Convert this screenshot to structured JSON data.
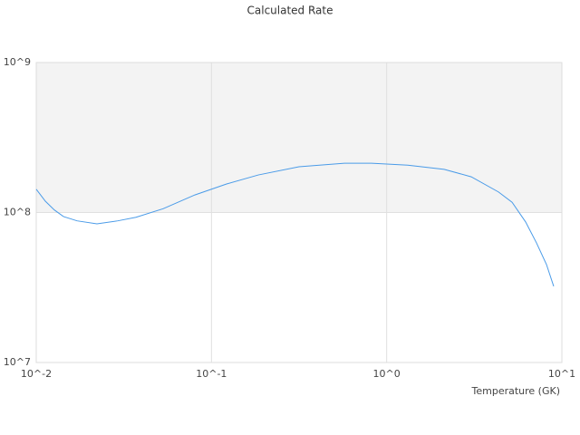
{
  "chart_data": {
    "type": "line",
    "title": "Calculated Rate",
    "x_label": "Temperature (GK)",
    "xscale": "log",
    "yscale": "log",
    "grid": true,
    "xlim": [
      0.01,
      10
    ],
    "ylim": [
      10000000,
      1000000000
    ],
    "xticks": [
      {
        "value": 0.01,
        "label": "10^-2"
      },
      {
        "value": 0.1,
        "label": "10^-1"
      },
      {
        "value": 1,
        "label": "10^0"
      },
      {
        "value": 10,
        "label": "10^1"
      }
    ],
    "yticks": [
      {
        "value": 10000000,
        "label": "10^7"
      },
      {
        "value": 100000000,
        "label": "10^8"
      },
      {
        "value": 1000000000,
        "label": "10^9"
      }
    ],
    "x": [
      0.01,
      0.01127,
      0.01269,
      0.0143,
      0.0171,
      0.0222,
      0.0292,
      0.0371,
      0.053,
      0.0804,
      0.122,
      0.185,
      0.316,
      0.574,
      0.82,
      1.32,
      2.13,
      3.04,
      4.35,
      5.2,
      6.21,
      7.16,
      8.17,
      8.98
    ],
    "series": [
      {
        "color": "#4a9be8",
        "values": [
          143000000,
          119000000,
          104000000,
          94000000,
          88000000,
          84000000,
          88000000,
          93000000,
          106000000,
          131000000,
          155000000,
          178000000,
          202000000,
          213000000,
          213000000,
          207000000,
          194000000,
          173000000,
          137000000,
          117000000,
          86500000,
          62800000,
          45000000,
          32200000
        ]
      }
    ]
  }
}
